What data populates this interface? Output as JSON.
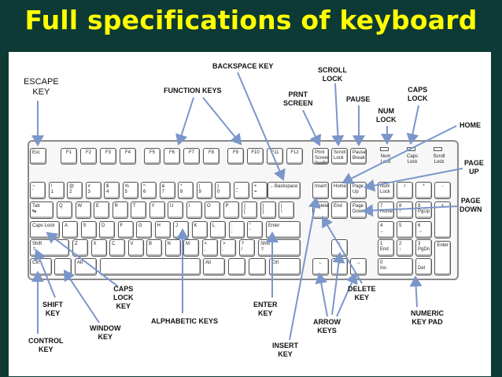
{
  "title": "Full specifications of keyboard",
  "colors": {
    "background": "#0d3a35",
    "title": "#ffff00",
    "arrow": "#7b96c9"
  },
  "labels": {
    "escape": "ESCAPE\nKEY",
    "backspace": "BACKSPACE KEY",
    "function": "FUNCTION KEYS",
    "scroll": "SCROLL\nLOCK",
    "prnt": "PRNT\nSCREEN",
    "pause": "PAUSE",
    "num": "NUM\nLOCK",
    "caps": "CAPS\nLOCK",
    "home": "HOME",
    "pageup": "PAGE\nUP",
    "pagedown": "PAGE\nDOWN",
    "shift": "SHIFT\nKEY",
    "capslockkey": "CAPS\nLOCK\nKEY",
    "window": "WINDOW\nKEY",
    "control": "CONTROL\nKEY",
    "alphabetic": "ALPHABETIC KEYS",
    "enter": "ENTER\nKEY",
    "insert": "INSERT\nKEY",
    "arrow": "ARROW\nKEYS",
    "delete": "DELETE\nKEY",
    "numeric": "NUMERIC\nKEY PAD"
  },
  "keys": {
    "esc": "Esc",
    "f1": "F1",
    "f2": "F2",
    "f3": "F3",
    "f4": "F4",
    "f5": "F5",
    "f6": "F6",
    "f7": "F7",
    "f8": "F8",
    "f9": "F9",
    "f10": "F10",
    "f11": "F11",
    "f12": "F12",
    "prnt": "Print\nScreen\nSysRq",
    "scroll": "Scroll\nLock",
    "pause": "Pause\nBreak",
    "led_num": "Num\nLock",
    "led_caps": "Caps\nLock",
    "led_scroll": "Scroll\nLock",
    "r1": [
      "~\n`",
      "!\n1",
      "@\n2",
      "#\n3",
      "$\n4",
      "%\n5",
      "^\n6",
      "&\n7",
      "*\n8",
      "(\n9",
      ")\n0",
      "_\n-",
      "+\n="
    ],
    "backspace": "←Backspace",
    "tab": "Tab\n↹",
    "r2": [
      "Q",
      "W",
      "E",
      "R",
      "T",
      "Y",
      "U",
      "I",
      "O",
      "P",
      "{\n[",
      "}\n]",
      "|\n\\"
    ],
    "capslock": "Caps Lock",
    "r3": [
      "A",
      "S",
      "D",
      "F",
      "G",
      "H",
      "J",
      "K",
      "L",
      ":\n;",
      "\"\n'"
    ],
    "enter": "Enter",
    "shift": "Shift\n⇧",
    "r4": [
      "Z",
      "X",
      "C",
      "V",
      "B",
      "N",
      "M",
      "<\n,",
      ">\n.",
      "?\n/"
    ],
    "ctrl": "Ctrl",
    "alt": "Alt",
    "insert": "Insert",
    "home": "Home",
    "pgup": "Page\nUp",
    "delete": "Delete",
    "end": "End",
    "pgdn": "Page\nDown",
    "up": "↑",
    "left": "←",
    "down": "↓",
    "right": "→",
    "numlock": "Num\nLock",
    "slash": "/",
    "star": "*",
    "minus": "-",
    "n7": "7\nHome",
    "n8": "8\n↑",
    "n9": "9\nPgUp",
    "plus": "+",
    "n4": "4\n←",
    "n5": "5",
    "n6": "6\n→",
    "n1": "1\nEnd",
    "n2": "2\n↓",
    "n3": "3\nPgDn",
    "nenter": "Enter",
    "n0": "0\nIns",
    "ndot": ".\nDel"
  }
}
